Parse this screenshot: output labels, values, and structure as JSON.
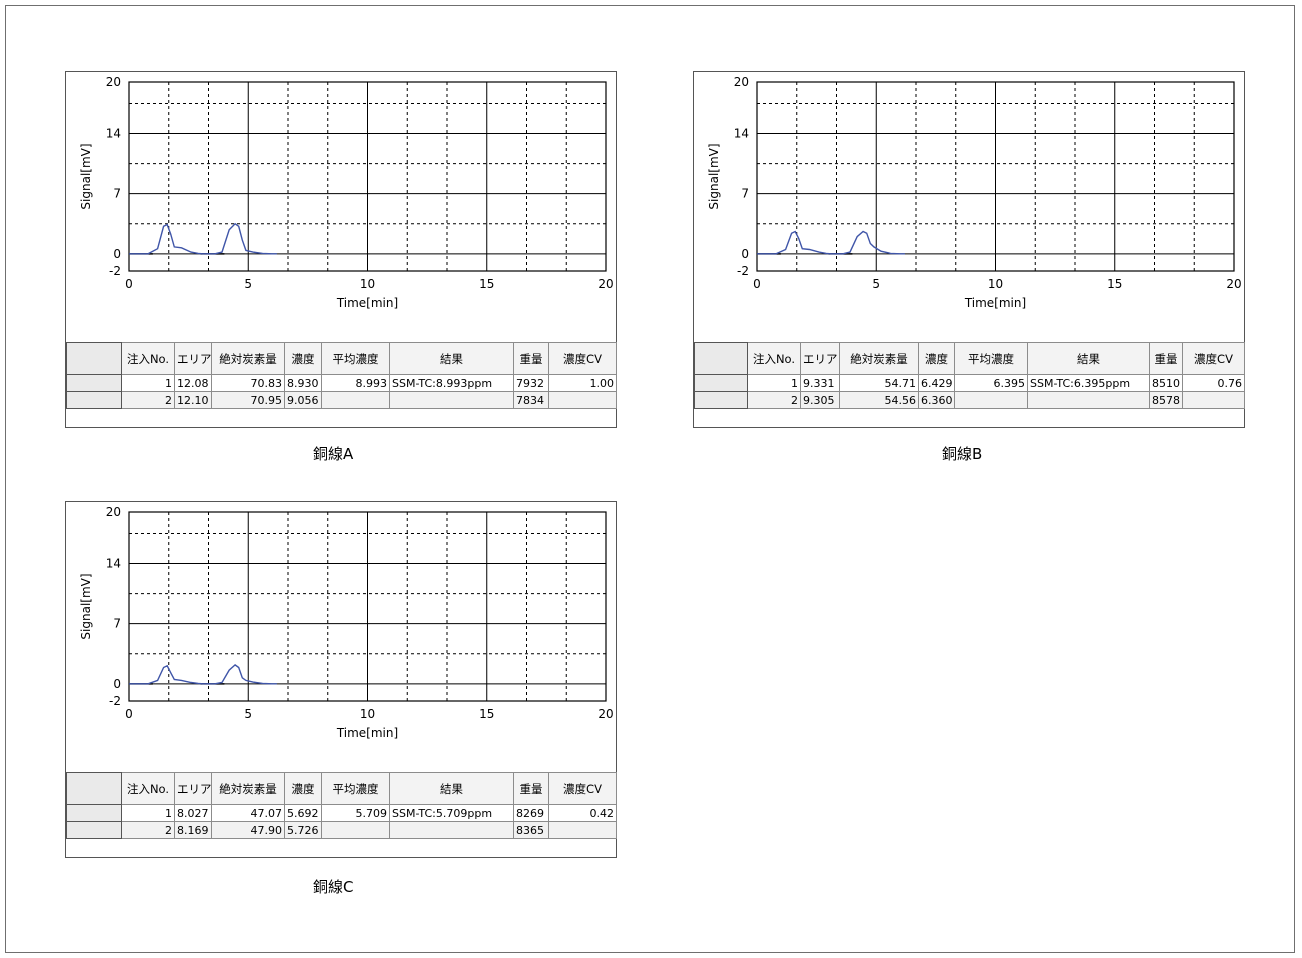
{
  "chart_data": [
    {
      "type": "line",
      "caption": "銅線A",
      "xlabel": "Time[min]",
      "ylabel": "Signal[mV]",
      "xlim": [
        0,
        20
      ],
      "ylim": [
        -2,
        20
      ],
      "x_ticks": [
        "0",
        "5",
        "10",
        "15",
        "20"
      ],
      "y_ticks": [
        "20",
        "14",
        "7",
        "0",
        "-2"
      ],
      "series": [
        {
          "color": "#3f55a8",
          "x": [
            0,
            0.8,
            1.2,
            1.45,
            1.6,
            1.75,
            1.9,
            2.2,
            2.6,
            2.9,
            3.1,
            3.6,
            3.9,
            4.2,
            4.45,
            4.6,
            4.75,
            4.9,
            5.2,
            5.6,
            6.0,
            6.2
          ],
          "y": [
            0,
            0,
            0.6,
            3.2,
            3.4,
            2.3,
            0.8,
            0.7,
            0.2,
            0.05,
            0,
            0,
            0.2,
            2.8,
            3.5,
            3.2,
            1.6,
            0.4,
            0.2,
            0.05,
            0,
            0
          ]
        }
      ],
      "table": {
        "headers": [
          "注入No.",
          "エリア",
          "絶対炭素量",
          "濃度",
          "平均濃度",
          "結果",
          "重量",
          "濃度CV"
        ],
        "rows": [
          [
            "1",
            "12.08",
            "70.83",
            "8.930",
            "8.993",
            "SSM-TC:8.993ppm",
            "7932",
            "1.00"
          ],
          [
            "2",
            "12.10",
            "70.95",
            "9.056",
            "",
            "",
            "7834",
            ""
          ]
        ]
      }
    },
    {
      "type": "line",
      "caption": "銅線B",
      "xlabel": "Time[min]",
      "ylabel": "Signal[mV]",
      "xlim": [
        0,
        20
      ],
      "ylim": [
        -2,
        20
      ],
      "x_ticks": [
        "0",
        "5",
        "10",
        "15",
        "20"
      ],
      "y_ticks": [
        "20",
        "14",
        "7",
        "0",
        "-2"
      ],
      "series": [
        {
          "color": "#3f55a8",
          "x": [
            0,
            0.8,
            1.2,
            1.45,
            1.6,
            1.75,
            1.9,
            2.2,
            2.6,
            2.9,
            3.1,
            3.6,
            3.9,
            4.2,
            4.45,
            4.6,
            4.75,
            4.9,
            5.2,
            5.6,
            6.0,
            6.2
          ],
          "y": [
            0,
            0,
            0.5,
            2.4,
            2.6,
            1.8,
            0.6,
            0.5,
            0.2,
            0.05,
            0,
            0,
            0.2,
            2.0,
            2.6,
            2.4,
            1.2,
            0.8,
            0.3,
            0.05,
            0,
            0
          ]
        }
      ],
      "table": {
        "headers": [
          "注入No.",
          "エリア",
          "絶対炭素量",
          "濃度",
          "平均濃度",
          "結果",
          "重量",
          "濃度CV"
        ],
        "rows": [
          [
            "1",
            "9.331",
            "54.71",
            "6.429",
            "6.395",
            "SSM-TC:6.395ppm",
            "8510",
            "0.76"
          ],
          [
            "2",
            "9.305",
            "54.56",
            "6.360",
            "",
            "",
            "8578",
            ""
          ]
        ]
      }
    },
    {
      "type": "line",
      "caption": "銅線C",
      "xlabel": "Time[min]",
      "ylabel": "Signal[mV]",
      "xlim": [
        0,
        20
      ],
      "ylim": [
        -2,
        20
      ],
      "x_ticks": [
        "0",
        "5",
        "10",
        "15",
        "20"
      ],
      "y_ticks": [
        "20",
        "14",
        "7",
        "0",
        "-2"
      ],
      "series": [
        {
          "color": "#3f55a8",
          "x": [
            0,
            0.8,
            1.2,
            1.45,
            1.6,
            1.75,
            1.9,
            2.2,
            2.6,
            2.9,
            3.1,
            3.6,
            3.9,
            4.2,
            4.45,
            4.6,
            4.75,
            4.9,
            5.2,
            5.6,
            6.0,
            6.2
          ],
          "y": [
            0,
            0,
            0.4,
            1.9,
            2.1,
            1.3,
            0.5,
            0.4,
            0.15,
            0.05,
            0,
            0,
            0.15,
            1.6,
            2.2,
            1.9,
            0.7,
            0.4,
            0.2,
            0.05,
            0,
            0
          ]
        }
      ],
      "table": {
        "headers": [
          "注入No.",
          "エリア",
          "絶対炭素量",
          "濃度",
          "平均濃度",
          "結果",
          "重量",
          "濃度CV"
        ],
        "rows": [
          [
            "1",
            "8.027",
            "47.07",
            "5.692",
            "5.709",
            "SSM-TC:5.709ppm",
            "8269",
            "0.42"
          ],
          [
            "2",
            "8.169",
            "47.90",
            "5.726",
            "",
            "",
            "8365",
            ""
          ]
        ]
      }
    }
  ]
}
